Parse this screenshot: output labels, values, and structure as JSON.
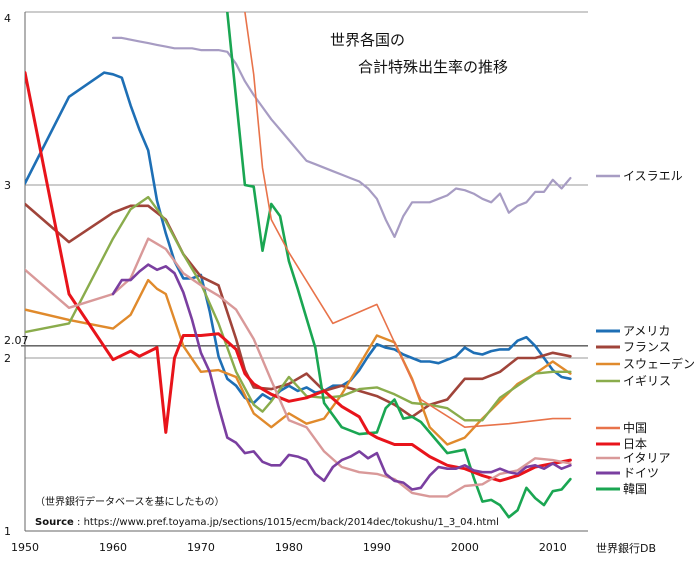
{
  "chart_data": {
    "type": "line",
    "title_line1": "世界各国の",
    "title_line2": "合計特殊出生率の推移",
    "source_credit": "世界銀行DB",
    "note": "（世界銀行データベースを基にしたもの）",
    "source_label": "Source",
    "source_url": "https://www.pref.toyama.jp/sections/1015/ecm/back/2014dec/tokushu/1_3_04.html",
    "xlim": [
      1950,
      2014
    ],
    "ylim": [
      1,
      4
    ],
    "x_ticks": [
      1950,
      1960,
      1970,
      1980,
      1990,
      2000,
      2010
    ],
    "y_ticks": [
      1,
      2,
      3,
      4
    ],
    "reference_line": {
      "value": 2.07,
      "label": "2.07"
    },
    "grid": "horizontal",
    "legend_placement": "right",
    "series": [
      {
        "name": "イスラエル",
        "color": "#a79cc3",
        "width": 2.2,
        "x": [
          1960,
          1961,
          1962,
          1963,
          1964,
          1965,
          1966,
          1967,
          1968,
          1969,
          1970,
          1971,
          1972,
          1973,
          1974,
          1975,
          1976,
          1977,
          1978,
          1979,
          1980,
          1981,
          1982,
          1983,
          1984,
          1985,
          1986,
          1987,
          1988,
          1989,
          1990,
          1991,
          1992,
          1993,
          1994,
          1995,
          1996,
          1997,
          1998,
          1999,
          2000,
          2001,
          2002,
          2003,
          2004,
          2005,
          2006,
          2007,
          2008,
          2009,
          2010,
          2011,
          2012
        ],
        "y": [
          3.85,
          3.85,
          3.84,
          3.83,
          3.82,
          3.81,
          3.8,
          3.79,
          3.79,
          3.79,
          3.78,
          3.78,
          3.78,
          3.77,
          3.7,
          3.6,
          3.52,
          3.45,
          3.38,
          3.32,
          3.26,
          3.2,
          3.14,
          3.12,
          3.1,
          3.08,
          3.06,
          3.04,
          3.02,
          2.98,
          2.92,
          2.8,
          2.7,
          2.82,
          2.9,
          2.9,
          2.9,
          2.92,
          2.94,
          2.98,
          2.97,
          2.95,
          2.92,
          2.9,
          2.95,
          2.84,
          2.88,
          2.9,
          2.96,
          2.96,
          3.03,
          2.98,
          3.04
        ]
      },
      {
        "name": "アメリカ",
        "color": "#1e6fb5",
        "width": 2.6,
        "x": [
          1950,
          1955,
          1959,
          1960,
          1961,
          1962,
          1963,
          1964,
          1965,
          1966,
          1967,
          1968,
          1969,
          1970,
          1971,
          1972,
          1973,
          1974,
          1975,
          1976,
          1977,
          1978,
          1979,
          1980,
          1981,
          1982,
          1983,
          1984,
          1985,
          1986,
          1987,
          1988,
          1989,
          1990,
          1991,
          1992,
          1993,
          1994,
          1995,
          1996,
          1997,
          1998,
          1999,
          2000,
          2001,
          2002,
          2003,
          2004,
          2005,
          2006,
          2007,
          2008,
          2009,
          2010,
          2011,
          2012
        ],
        "y": [
          3.01,
          3.51,
          3.65,
          3.64,
          3.62,
          3.46,
          3.32,
          3.2,
          2.91,
          2.72,
          2.56,
          2.46,
          2.46,
          2.48,
          2.27,
          2.01,
          1.88,
          1.84,
          1.77,
          1.74,
          1.79,
          1.76,
          1.81,
          1.84,
          1.81,
          1.83,
          1.8,
          1.81,
          1.84,
          1.84,
          1.87,
          1.93,
          2.01,
          2.08,
          2.06,
          2.05,
          2.02,
          2.0,
          1.98,
          1.98,
          1.97,
          1.99,
          2.01,
          2.06,
          2.03,
          2.02,
          2.04,
          2.05,
          2.05,
          2.1,
          2.12,
          2.07,
          2.0,
          1.93,
          1.89,
          1.88
        ]
      },
      {
        "name": "フランス",
        "color": "#a0443a",
        "width": 2.6,
        "x": [
          1950,
          1955,
          1960,
          1962,
          1964,
          1966,
          1968,
          1970,
          1972,
          1974,
          1975,
          1976,
          1978,
          1980,
          1982,
          1984,
          1986,
          1988,
          1990,
          1992,
          1994,
          1996,
          1998,
          2000,
          2002,
          2004,
          2006,
          2008,
          2010,
          2012
        ],
        "y": [
          2.89,
          2.67,
          2.84,
          2.88,
          2.88,
          2.8,
          2.6,
          2.47,
          2.42,
          2.11,
          1.93,
          1.83,
          1.82,
          1.85,
          1.91,
          1.81,
          1.84,
          1.81,
          1.78,
          1.73,
          1.66,
          1.73,
          1.76,
          1.88,
          1.88,
          1.92,
          2.0,
          2.0,
          2.03,
          2.01
        ]
      },
      {
        "name": "スウェーデン",
        "color": "#e08a2c",
        "width": 2.4,
        "x": [
          1950,
          1955,
          1960,
          1962,
          1964,
          1965,
          1966,
          1968,
          1970,
          1972,
          1974,
          1976,
          1978,
          1980,
          1982,
          1984,
          1986,
          1988,
          1990,
          1992,
          1994,
          1996,
          1998,
          2000,
          2002,
          2004,
          2006,
          2008,
          2010,
          2012
        ],
        "y": [
          2.28,
          2.22,
          2.17,
          2.25,
          2.45,
          2.4,
          2.37,
          2.07,
          1.92,
          1.93,
          1.89,
          1.68,
          1.6,
          1.68,
          1.62,
          1.65,
          1.79,
          1.96,
          2.13,
          2.09,
          1.88,
          1.6,
          1.5,
          1.54,
          1.65,
          1.75,
          1.85,
          1.91,
          1.98,
          1.91
        ]
      },
      {
        "name": "イギリス",
        "color": "#8aac4c",
        "width": 2.4,
        "x": [
          1950,
          1955,
          1960,
          1962,
          1964,
          1966,
          1968,
          1970,
          1972,
          1974,
          1976,
          1977,
          1978,
          1980,
          1982,
          1984,
          1986,
          1988,
          1990,
          1992,
          1994,
          1996,
          1998,
          2000,
          2002,
          2004,
          2006,
          2008,
          2010,
          2012
        ],
        "y": [
          2.15,
          2.2,
          2.69,
          2.86,
          2.93,
          2.79,
          2.6,
          2.43,
          2.2,
          1.92,
          1.73,
          1.69,
          1.75,
          1.89,
          1.78,
          1.77,
          1.78,
          1.82,
          1.83,
          1.79,
          1.74,
          1.73,
          1.71,
          1.64,
          1.64,
          1.77,
          1.84,
          1.91,
          1.92,
          1.92
        ]
      },
      {
        "name": "韓国",
        "color": "#1aa652",
        "width": 2.6,
        "x": [
          1973,
          1975,
          1976,
          1977,
          1978,
          1979,
          1980,
          1981,
          1983,
          1984,
          1986,
          1988,
          1990,
          1991,
          1992,
          1993,
          1994,
          1995,
          1996,
          1998,
          2000,
          2001,
          2002,
          2003,
          2004,
          2005,
          2006,
          2007,
          2008,
          2009,
          2010,
          2011,
          2012
        ],
        "y": [
          4.0,
          3.0,
          2.99,
          2.62,
          2.89,
          2.82,
          2.56,
          2.4,
          2.06,
          1.74,
          1.6,
          1.56,
          1.57,
          1.71,
          1.76,
          1.65,
          1.66,
          1.63,
          1.57,
          1.45,
          1.47,
          1.31,
          1.17,
          1.18,
          1.15,
          1.08,
          1.12,
          1.25,
          1.19,
          1.15,
          1.23,
          1.24,
          1.3
        ]
      },
      {
        "name": "中国",
        "color": "#e8734a",
        "width": 1.6,
        "x": [
          1975,
          1976,
          1977,
          1978,
          1980,
          1985,
          1990,
          1995,
          2000,
          2005,
          2010,
          2012
        ],
        "y": [
          4.0,
          3.64,
          3.1,
          2.8,
          2.61,
          2.2,
          2.31,
          1.76,
          1.6,
          1.62,
          1.65,
          1.65
        ]
      },
      {
        "name": "日本",
        "color": "#e8141b",
        "width": 3.0,
        "x": [
          1950,
          1955,
          1960,
          1962,
          1963,
          1965,
          1966,
          1967,
          1968,
          1970,
          1972,
          1974,
          1975,
          1976,
          1978,
          1980,
          1982,
          1984,
          1986,
          1988,
          1989,
          1990,
          1992,
          1994,
          1996,
          1998,
          2000,
          2002,
          2004,
          2006,
          2008,
          2010,
          2012
        ],
        "y": [
          3.65,
          2.37,
          1.99,
          2.04,
          2.01,
          2.06,
          1.57,
          2.0,
          2.13,
          2.13,
          2.14,
          2.05,
          1.91,
          1.85,
          1.79,
          1.75,
          1.77,
          1.81,
          1.72,
          1.66,
          1.57,
          1.54,
          1.5,
          1.5,
          1.43,
          1.38,
          1.36,
          1.32,
          1.29,
          1.32,
          1.37,
          1.39,
          1.41
        ]
      },
      {
        "name": "イタリア",
        "color": "#d99999",
        "width": 2.4,
        "x": [
          1950,
          1955,
          1960,
          1962,
          1964,
          1965,
          1966,
          1968,
          1970,
          1972,
          1974,
          1976,
          1978,
          1980,
          1982,
          1984,
          1986,
          1988,
          1990,
          1992,
          1994,
          1996,
          1998,
          2000,
          2002,
          2004,
          2006,
          2008,
          2010,
          2012
        ],
        "y": [
          2.51,
          2.29,
          2.37,
          2.46,
          2.69,
          2.66,
          2.63,
          2.49,
          2.42,
          2.36,
          2.28,
          2.11,
          1.87,
          1.64,
          1.6,
          1.46,
          1.37,
          1.34,
          1.33,
          1.3,
          1.22,
          1.2,
          1.2,
          1.26,
          1.27,
          1.33,
          1.35,
          1.42,
          1.41,
          1.39
        ]
      },
      {
        "name": "ドイツ",
        "color": "#7a3fa0",
        "width": 2.6,
        "x": [
          1960,
          1961,
          1962,
          1963,
          1964,
          1965,
          1966,
          1967,
          1968,
          1969,
          1970,
          1971,
          1972,
          1973,
          1974,
          1975,
          1976,
          1977,
          1978,
          1979,
          1980,
          1981,
          1982,
          1983,
          1984,
          1985,
          1986,
          1987,
          1988,
          1989,
          1990,
          1991,
          1992,
          1993,
          1994,
          1995,
          1996,
          1997,
          1998,
          1999,
          2000,
          2001,
          2002,
          2003,
          2004,
          2005,
          2006,
          2007,
          2008,
          2009,
          2010,
          2011,
          2012
        ],
        "y": [
          2.37,
          2.45,
          2.45,
          2.5,
          2.54,
          2.51,
          2.53,
          2.49,
          2.38,
          2.22,
          2.03,
          1.92,
          1.72,
          1.54,
          1.51,
          1.45,
          1.46,
          1.4,
          1.38,
          1.38,
          1.44,
          1.43,
          1.41,
          1.33,
          1.29,
          1.37,
          1.41,
          1.43,
          1.46,
          1.42,
          1.45,
          1.33,
          1.29,
          1.28,
          1.24,
          1.25,
          1.32,
          1.37,
          1.36,
          1.36,
          1.38,
          1.35,
          1.34,
          1.34,
          1.36,
          1.34,
          1.33,
          1.37,
          1.38,
          1.36,
          1.39,
          1.36,
          1.38
        ]
      }
    ]
  }
}
